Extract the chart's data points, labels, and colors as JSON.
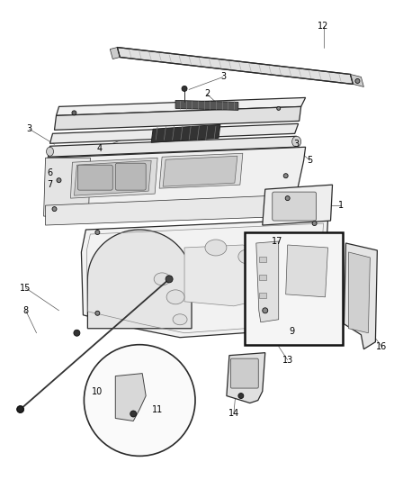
{
  "bg_color": "#ffffff",
  "line_color": "#2a2a2a",
  "label_color": "#000000",
  "fig_width": 4.38,
  "fig_height": 5.33,
  "dpi": 100,
  "lw_main": 0.9,
  "lw_thin": 0.5,
  "lw_thick": 1.4,
  "font_size": 7.0
}
